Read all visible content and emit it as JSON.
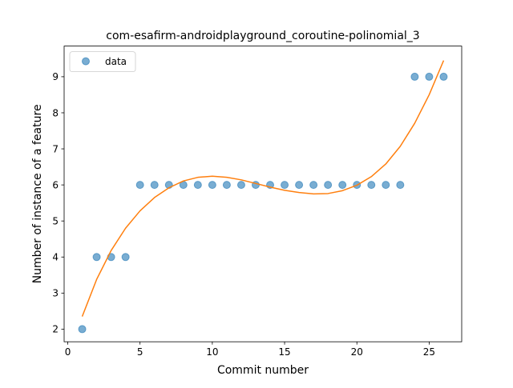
{
  "chart_data": {
    "type": "scatter",
    "title": "com-esafirm-androidplayground_coroutine-polinomial_3",
    "xlabel": "Commit number",
    "ylabel": "Number of instance of a feature",
    "xlim": [
      -0.25,
      27.25
    ],
    "ylim": [
      1.65,
      9.85
    ],
    "x_ticks": [
      0,
      5,
      10,
      15,
      20,
      25
    ],
    "y_ticks": [
      2,
      3,
      4,
      5,
      6,
      7,
      8,
      9
    ],
    "grid": false,
    "legend_position": "top-left",
    "series": [
      {
        "name": "data",
        "kind": "scatter",
        "color": "#1f77b4",
        "x": [
          1,
          2,
          3,
          4,
          5,
          6,
          7,
          8,
          9,
          10,
          11,
          12,
          13,
          14,
          15,
          16,
          17,
          18,
          19,
          20,
          21,
          22,
          23,
          24,
          25,
          26
        ],
        "y": [
          2,
          4,
          4,
          4,
          6,
          6,
          6,
          6,
          6,
          6,
          6,
          6,
          6,
          6,
          6,
          6,
          6,
          6,
          6,
          6,
          6,
          6,
          6,
          9,
          9,
          9
        ]
      },
      {
        "kind": "line",
        "color": "#ff7f0e",
        "x": [
          1,
          2,
          3,
          4,
          5,
          6,
          7,
          8,
          9,
          10,
          11,
          12,
          13,
          14,
          15,
          16,
          17,
          18,
          19,
          20,
          21,
          22,
          23,
          24,
          25,
          26
        ],
        "y": [
          2.35,
          3.38,
          4.18,
          4.8,
          5.28,
          5.65,
          5.92,
          6.11,
          6.21,
          6.24,
          6.21,
          6.14,
          6.04,
          5.94,
          5.85,
          5.79,
          5.75,
          5.76,
          5.84,
          5.99,
          6.23,
          6.58,
          7.07,
          7.71,
          8.5,
          9.45
        ]
      }
    ]
  }
}
